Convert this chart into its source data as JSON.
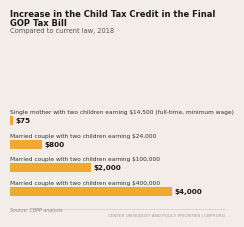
{
  "title_line1": "Increase in the Child Tax Credit in the Final",
  "title_line2": "GOP Tax Bill",
  "subtitle": "Compared to current law, 2018",
  "categories": [
    "Single mother with two children earning $14,500 (full-time, minimum wage)",
    "Married couple with two children earning $24,000",
    "Married couple with two children earning $100,000",
    "Married couple with two children earning $400,000"
  ],
  "values": [
    75,
    800,
    2000,
    4000
  ],
  "labels": [
    "$75",
    "$800",
    "$2,000",
    "$4,000"
  ],
  "bar_color": "#F0A830",
  "background_color": "#F2EDE8",
  "title_color": "#1a1a1a",
  "subtitle_color": "#555555",
  "category_color": "#333333",
  "label_color": "#1a1a1a",
  "source_text": "Source: CBPP analysis",
  "footer_text": "CENTER ON BUDGET AND POLICY PRIORITIES | CBPP.ORG",
  "footer_line_color": "#cccccc",
  "source_color": "#888888",
  "footer_color": "#999999",
  "xlim_max": 4500
}
